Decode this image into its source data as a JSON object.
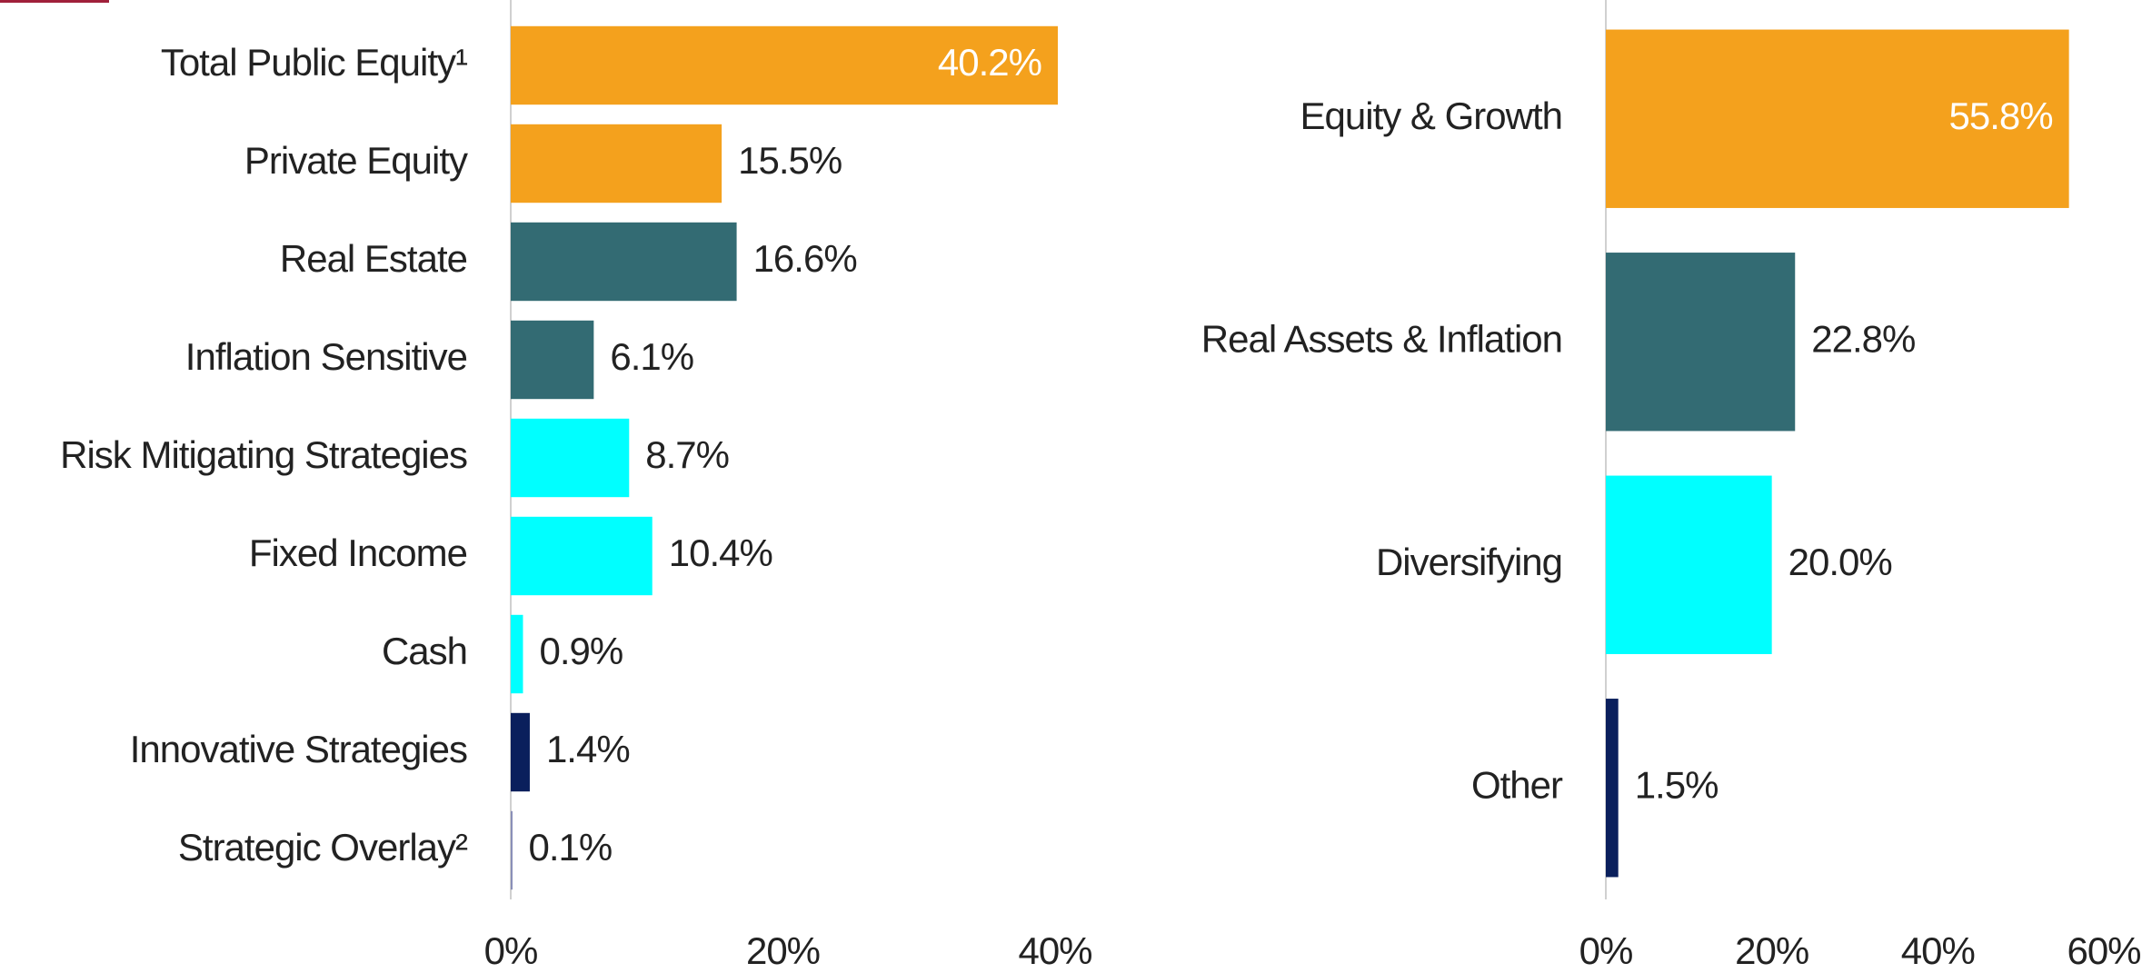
{
  "chart_data": [
    {
      "type": "hbar",
      "categories": [
        "Total Public Equity¹",
        "Private Equity",
        "Real Estate",
        "Inflation Sensitive",
        "Risk Mitigating Strategies",
        "Fixed Income",
        "Cash",
        "Innovative Strategies",
        "Strategic Overlay²"
      ],
      "values": [
        40.2,
        15.5,
        16.6,
        6.1,
        8.7,
        10.4,
        0.9,
        1.4,
        0.1
      ],
      "value_labels": [
        "40.2%",
        "15.5%",
        "16.6%",
        "6.1%",
        "8.7%",
        "10.4%",
        "0.9%",
        "1.4%",
        "0.1%"
      ],
      "colors": [
        "#f4a11d",
        "#f4a11d",
        "#336b73",
        "#336b73",
        "#00ffff",
        "#00ffff",
        "#00ffff",
        "#0a1f5c",
        "#8a8fb8"
      ],
      "xlim": [
        0,
        40
      ],
      "xticks": [
        {
          "value": 0,
          "label": "0%"
        },
        {
          "value": 20,
          "label": "20%"
        },
        {
          "value": 40,
          "label": "40%"
        }
      ]
    },
    {
      "type": "hbar",
      "categories": [
        "Equity & Growth",
        "Real Assets & Inflation",
        "Diversifying",
        "Other"
      ],
      "values": [
        55.8,
        22.8,
        20.0,
        1.5
      ],
      "value_labels": [
        "55.8%",
        "22.8%",
        "20.0%",
        "1.5%"
      ],
      "colors": [
        "#f4a11d",
        "#336b73",
        "#00ffff",
        "#0a1f5c"
      ],
      "xlim": [
        0,
        60
      ],
      "xticks": [
        {
          "value": 0,
          "label": "0%"
        },
        {
          "value": 20,
          "label": "20%"
        },
        {
          "value": 40,
          "label": "40%"
        },
        {
          "value": 60,
          "label": "60%"
        }
      ]
    }
  ]
}
